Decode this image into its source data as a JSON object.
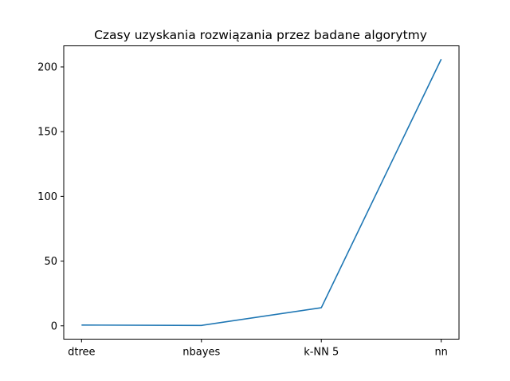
{
  "chart_data": {
    "type": "line",
    "title": "Czasy uzyskania rozwiązania przez badane algorytmy",
    "xlabel": "",
    "ylabel": "",
    "categories": [
      "dtree",
      "nbayes",
      "k-NN 5",
      "nn"
    ],
    "series": [
      {
        "values": [
          0.6,
          0.3,
          14.0,
          206.0
        ],
        "color": "#1f77b4"
      }
    ],
    "ylim": [
      -10.3,
      216.3
    ],
    "yticks": [
      0,
      50,
      100,
      150,
      200
    ],
    "grid": false,
    "legend": "none"
  }
}
